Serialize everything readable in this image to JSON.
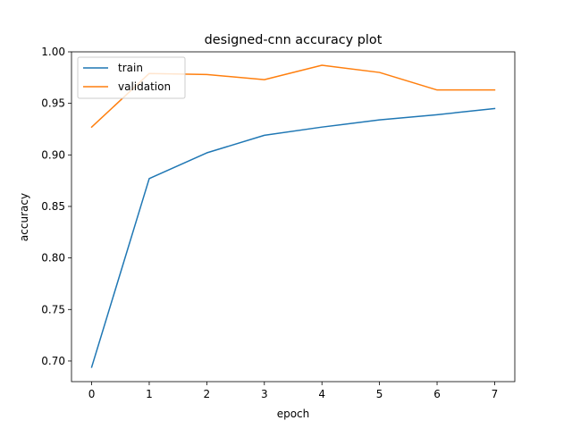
{
  "chart_data": {
    "type": "line",
    "title": "designed-cnn accuracy plot",
    "xlabel": "epoch",
    "ylabel": "accuracy",
    "x": [
      0,
      1,
      2,
      3,
      4,
      5,
      6,
      7
    ],
    "xlim": [
      -0.35,
      7.35
    ],
    "ylim": [
      0.68,
      1.0
    ],
    "xticks": [
      0,
      1,
      2,
      3,
      4,
      5,
      6,
      7
    ],
    "yticks": [
      0.7,
      0.75,
      0.8,
      0.85,
      0.9,
      0.95,
      1.0
    ],
    "ytick_labels": [
      "0.70",
      "0.75",
      "0.80",
      "0.85",
      "0.90",
      "0.95",
      "1.00"
    ],
    "xtick_labels": [
      "0",
      "1",
      "2",
      "3",
      "4",
      "5",
      "6",
      "7"
    ],
    "grid": false,
    "legend": "top-left",
    "series": [
      {
        "name": "train",
        "color": "#1f77b4",
        "values": [
          0.694,
          0.877,
          0.902,
          0.919,
          0.927,
          0.934,
          0.939,
          0.945
        ]
      },
      {
        "name": "validation",
        "color": "#ff7f0e",
        "values": [
          0.927,
          0.979,
          0.978,
          0.973,
          0.987,
          0.98,
          0.963,
          0.963
        ]
      }
    ]
  }
}
